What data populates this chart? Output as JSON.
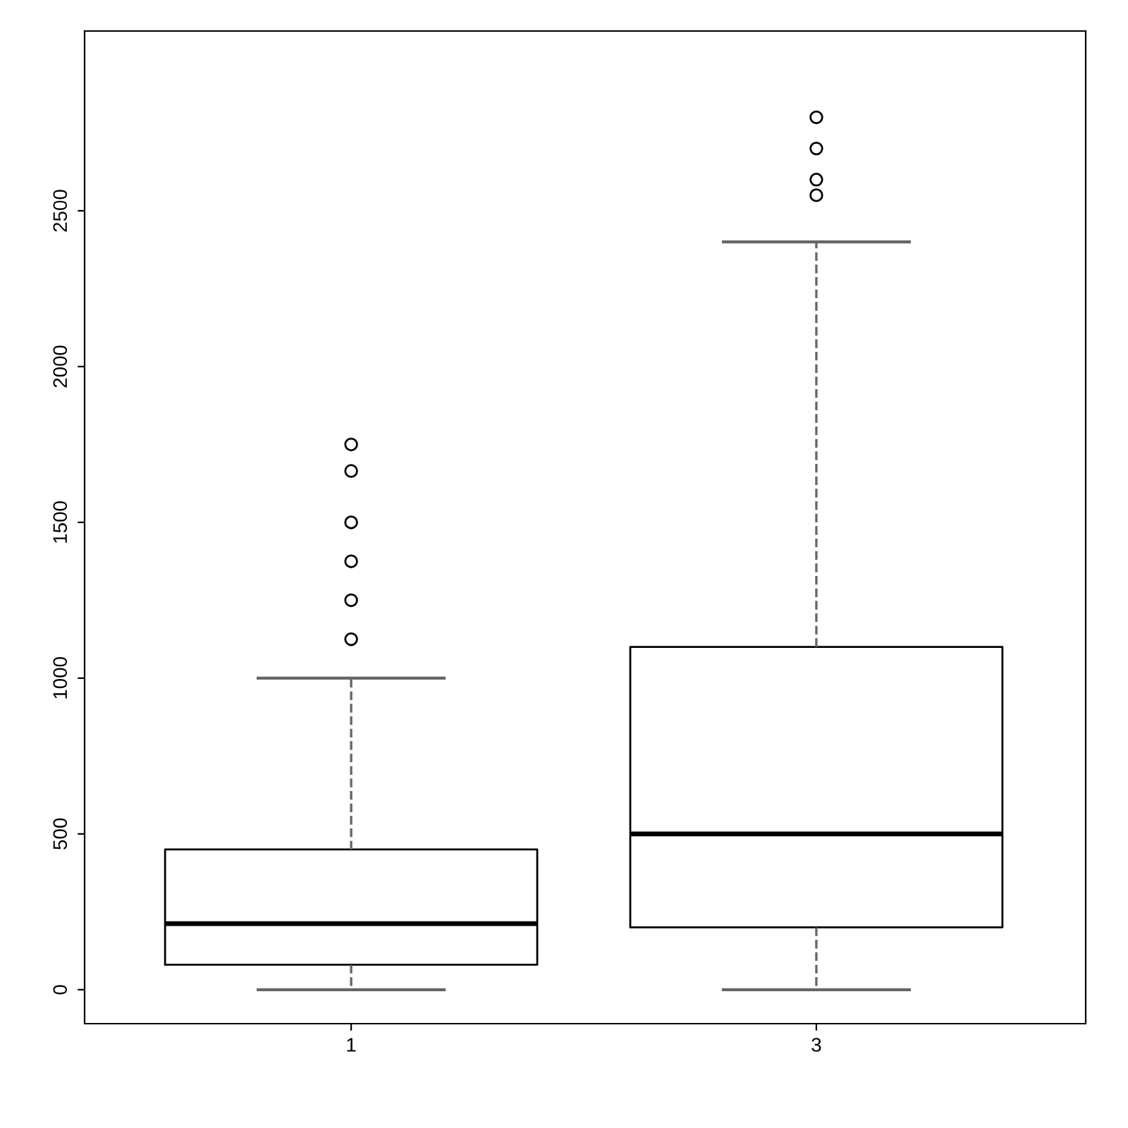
{
  "chart_data": {
    "type": "box",
    "categories": [
      "1",
      "3"
    ],
    "boxes": [
      {
        "low": 0,
        "q1": 80,
        "median": 212,
        "q3": 450,
        "high": 1000,
        "outliers": [
          1125,
          1250,
          1375,
          1500,
          1665,
          1750
        ]
      },
      {
        "low": 0,
        "q1": 200,
        "median": 500,
        "q3": 1100,
        "high": 2400,
        "outliers": [
          2550,
          2600,
          2700,
          2800
        ]
      }
    ],
    "ylim": [
      -109,
      3077
    ],
    "yticks": [
      0,
      500,
      1000,
      1500,
      2000,
      2500
    ],
    "grid": false
  }
}
